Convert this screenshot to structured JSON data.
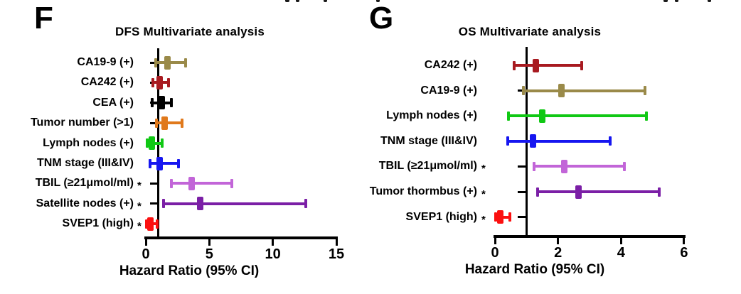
{
  "figure": {
    "background": "#ffffff",
    "significance_symbol": "*",
    "axis_color": "#000000"
  },
  "chart_data": [
    {
      "type": "scatter",
      "subtype": "forest-plot-hazard-ratio",
      "panel": "F",
      "title": "DFS Multivariate analysis",
      "xlabel": "Hazard Ratio (95% CI)",
      "axis": {
        "xlim": [
          0,
          15
        ],
        "ticks": [
          0,
          5,
          10,
          15
        ],
        "reference_line_x": 1,
        "grid": false
      },
      "rows": [
        {
          "label": "CA19-9 (+)",
          "hr": 1.7,
          "ci_low": 0.8,
          "ci_high": 3.15,
          "significant": false,
          "color": "#9a8a49"
        },
        {
          "label": "CA242 (+)",
          "hr": 1.1,
          "ci_low": 0.55,
          "ci_high": 1.8,
          "significant": false,
          "color": "#a81a20"
        },
        {
          "label": "CEA (+)",
          "hr": 1.25,
          "ci_low": 0.5,
          "ci_high": 2.0,
          "significant": false,
          "color": "#000000"
        },
        {
          "label": "Tumor number (>1)",
          "hr": 1.5,
          "ci_low": 0.85,
          "ci_high": 2.85,
          "significant": false,
          "color": "#e0791c"
        },
        {
          "label": "Lymph nodes (+)",
          "hr": 0.45,
          "ci_low": 0.1,
          "ci_high": 1.3,
          "significant": false,
          "color": "#10c814"
        },
        {
          "label": "TNM stage (III&IV)",
          "hr": 1.1,
          "ci_low": 0.35,
          "ci_high": 2.6,
          "significant": false,
          "color": "#1616f0"
        },
        {
          "label": "TBIL (≥21μmol/ml)",
          "hr": 3.6,
          "ci_low": 2.0,
          "ci_high": 6.8,
          "significant": true,
          "color": "#c265d8"
        },
        {
          "label": "Satellite nodes (+)",
          "hr": 4.3,
          "ci_low": 1.4,
          "ci_high": 12.6,
          "significant": true,
          "color": "#7b1fa6"
        },
        {
          "label": "SVEP1 (high)",
          "hr": 0.35,
          "ci_low": 0.05,
          "ci_high": 0.9,
          "significant": true,
          "color": "#fb1010"
        }
      ]
    },
    {
      "type": "scatter",
      "subtype": "forest-plot-hazard-ratio",
      "panel": "G",
      "title": "OS Multivariate analysis",
      "xlabel": "Hazard Ratio (95% CI)",
      "axis": {
        "xlim": [
          0,
          6
        ],
        "ticks": [
          0,
          2,
          4,
          6
        ],
        "reference_line_x": 1,
        "grid": false
      },
      "rows": [
        {
          "label": "CA242 (+)",
          "hr": 1.3,
          "ci_low": 0.6,
          "ci_high": 2.75,
          "significant": false,
          "color": "#a81a20"
        },
        {
          "label": "CA19-9 (+)",
          "hr": 2.1,
          "ci_low": 0.9,
          "ci_high": 4.75,
          "significant": false,
          "color": "#9a8a49"
        },
        {
          "label": "Lymph nodes (+)",
          "hr": 1.5,
          "ci_low": 0.43,
          "ci_high": 4.8,
          "significant": false,
          "color": "#10c814"
        },
        {
          "label": "TNM stage (III&IV)",
          "hr": 1.2,
          "ci_low": 0.4,
          "ci_high": 3.65,
          "significant": false,
          "color": "#1616f0"
        },
        {
          "label": "TBIL (≥21μmol/ml)",
          "hr": 2.2,
          "ci_low": 1.25,
          "ci_high": 4.1,
          "significant": true,
          "color": "#c265d8"
        },
        {
          "label": "Tumor thormbus (+)",
          "hr": 2.65,
          "ci_low": 1.35,
          "ci_high": 5.2,
          "significant": true,
          "color": "#7b1fa6"
        },
        {
          "label": "SVEP1 (high)",
          "hr": 0.16,
          "ci_low": 0.02,
          "ci_high": 0.47,
          "significant": true,
          "color": "#fb1010"
        }
      ]
    }
  ]
}
